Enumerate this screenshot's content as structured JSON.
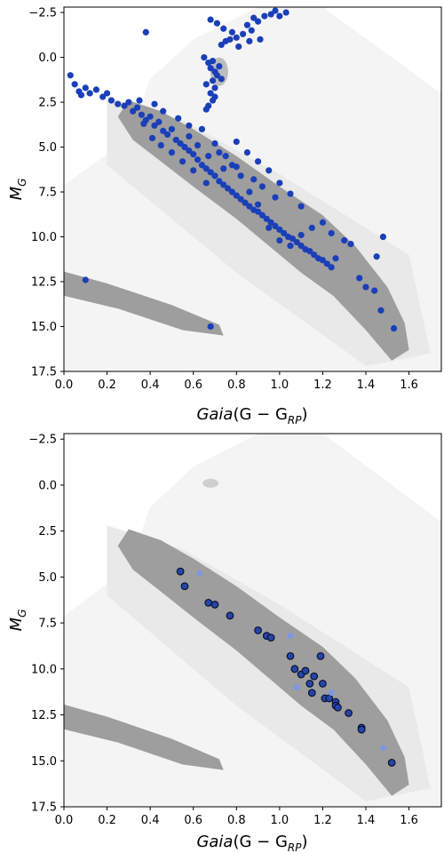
{
  "colors": {
    "background_cloud": "#f4f4f4",
    "background_cloud_dense": "#e9e9e9",
    "sequence_gray": "#9e9e9e",
    "points_top": "#1a3fb8",
    "points_bottom_dark": "#2546a8",
    "points_bottom_light": "#7d97e0",
    "edge_bottom": "#0a1030"
  },
  "chart_data": [
    {
      "type": "scatter",
      "xlabel_base": "Gaia",
      "xlabel_paren": "(G − G",
      "xlabel_sub": "RP",
      "xlabel_close": ")",
      "ylabel_base": "M",
      "ylabel_sub": "G",
      "xlim": [
        0.0,
        1.75
      ],
      "ylim": [
        17.5,
        -2.8
      ],
      "xticks": [
        "0.0",
        "0.2",
        "0.4",
        "0.6",
        "0.8",
        "1.0",
        "1.2",
        "1.4",
        "1.6"
      ],
      "yticks": [
        "−2.5",
        "0.0",
        "2.5",
        "5.0",
        "7.5",
        "10.0",
        "12.5",
        "15.0",
        "17.5"
      ],
      "series": [
        {
          "points": [
            [
              0.38,
              -1.4
            ],
            [
              0.68,
              -2.1
            ],
            [
              0.71,
              -1.9
            ],
            [
              0.74,
              -1.6
            ],
            [
              0.78,
              -1.4
            ],
            [
              0.8,
              -1.1
            ],
            [
              0.83,
              -1.3
            ],
            [
              0.85,
              -1.8
            ],
            [
              0.87,
              -1.5
            ],
            [
              0.88,
              -2.2
            ],
            [
              0.9,
              -2.0
            ],
            [
              0.93,
              -2.3
            ],
            [
              0.96,
              -2.4
            ],
            [
              0.98,
              -2.6
            ],
            [
              1.0,
              -2.3
            ],
            [
              1.03,
              -2.5
            ],
            [
              0.91,
              -1.0
            ],
            [
              0.86,
              -0.9
            ],
            [
              0.81,
              -0.6
            ],
            [
              0.77,
              -1.0
            ],
            [
              0.73,
              -0.7
            ],
            [
              0.75,
              -0.9
            ],
            [
              0.65,
              0.0
            ],
            [
              0.67,
              0.3
            ],
            [
              0.68,
              0.6
            ],
            [
              0.69,
              0.2
            ],
            [
              0.7,
              0.8
            ],
            [
              0.71,
              1.0
            ],
            [
              0.69,
              1.3
            ],
            [
              0.7,
              1.7
            ],
            [
              0.68,
              2.0
            ],
            [
              0.69,
              2.4
            ],
            [
              0.67,
              2.7
            ],
            [
              0.66,
              2.9
            ],
            [
              0.7,
              2.2
            ],
            [
              0.72,
              0.5
            ],
            [
              0.66,
              1.5
            ],
            [
              0.73,
              1.2
            ],
            [
              0.03,
              1.0
            ],
            [
              0.05,
              1.5
            ],
            [
              0.07,
              1.9
            ],
            [
              0.08,
              2.1
            ],
            [
              0.1,
              1.7
            ],
            [
              0.12,
              2.0
            ],
            [
              0.15,
              1.8
            ],
            [
              0.18,
              2.2
            ],
            [
              0.2,
              2.0
            ],
            [
              0.22,
              2.4
            ],
            [
              0.25,
              2.6
            ],
            [
              0.28,
              2.7
            ],
            [
              0.3,
              2.5
            ],
            [
              0.32,
              3.0
            ],
            [
              0.34,
              2.8
            ],
            [
              0.36,
              3.2
            ],
            [
              0.38,
              3.5
            ],
            [
              0.4,
              3.3
            ],
            [
              0.42,
              3.8
            ],
            [
              0.44,
              3.6
            ],
            [
              0.46,
              4.1
            ],
            [
              0.48,
              4.3
            ],
            [
              0.5,
              4.0
            ],
            [
              0.52,
              4.6
            ],
            [
              0.54,
              4.8
            ],
            [
              0.56,
              5.0
            ],
            [
              0.58,
              5.2
            ],
            [
              0.6,
              5.4
            ],
            [
              0.62,
              5.7
            ],
            [
              0.64,
              6.0
            ],
            [
              0.66,
              6.2
            ],
            [
              0.68,
              6.4
            ],
            [
              0.7,
              6.6
            ],
            [
              0.72,
              6.9
            ],
            [
              0.74,
              7.1
            ],
            [
              0.76,
              7.3
            ],
            [
              0.78,
              7.5
            ],
            [
              0.8,
              7.7
            ],
            [
              0.82,
              7.9
            ],
            [
              0.84,
              8.1
            ],
            [
              0.86,
              8.3
            ],
            [
              0.88,
              8.5
            ],
            [
              0.9,
              8.6
            ],
            [
              0.92,
              8.8
            ],
            [
              0.94,
              9.0
            ],
            [
              0.96,
              9.2
            ],
            [
              0.98,
              9.4
            ],
            [
              1.0,
              9.6
            ],
            [
              1.02,
              9.8
            ],
            [
              1.04,
              10.0
            ],
            [
              1.06,
              10.1
            ],
            [
              1.08,
              10.3
            ],
            [
              1.1,
              10.5
            ],
            [
              1.12,
              10.7
            ],
            [
              1.14,
              10.8
            ],
            [
              1.16,
              11.0
            ],
            [
              1.18,
              11.2
            ],
            [
              1.2,
              11.3
            ],
            [
              1.22,
              11.5
            ],
            [
              1.24,
              11.7
            ],
            [
              1.26,
              11.2
            ],
            [
              1.3,
              10.2
            ],
            [
              1.33,
              10.4
            ],
            [
              1.37,
              12.3
            ],
            [
              1.4,
              12.8
            ],
            [
              1.44,
              13.0
            ],
            [
              1.47,
              14.1
            ],
            [
              1.53,
              15.1
            ],
            [
              1.45,
              11.1
            ],
            [
              1.48,
              10.0
            ],
            [
              1.24,
              9.8
            ],
            [
              1.2,
              9.2
            ],
            [
              1.15,
              9.5
            ],
            [
              1.1,
              9.9
            ],
            [
              1.05,
              10.5
            ],
            [
              1.0,
              10.2
            ],
            [
              0.95,
              9.5
            ],
            [
              0.9,
              8.2
            ],
            [
              0.86,
              7.5
            ],
            [
              0.82,
              6.6
            ],
            [
              0.78,
              6.0
            ],
            [
              0.75,
              5.5
            ],
            [
              0.72,
              5.3
            ],
            [
              0.7,
              4.8
            ],
            [
              0.8,
              4.7
            ],
            [
              0.85,
              5.3
            ],
            [
              0.9,
              5.8
            ],
            [
              0.95,
              6.3
            ],
            [
              1.0,
              7.0
            ],
            [
              1.05,
              7.6
            ],
            [
              1.1,
              8.3
            ],
            [
              0.98,
              7.8
            ],
            [
              0.92,
              7.2
            ],
            [
              0.88,
              6.8
            ],
            [
              0.8,
              6.1
            ],
            [
              0.64,
              4.0
            ],
            [
              0.58,
              3.8
            ],
            [
              0.53,
              3.4
            ],
            [
              0.46,
              3.0
            ],
            [
              0.42,
              2.6
            ],
            [
              0.35,
              2.4
            ],
            [
              0.37,
              3.7
            ],
            [
              0.41,
              4.5
            ],
            [
              0.45,
              4.9
            ],
            [
              0.5,
              5.3
            ],
            [
              0.55,
              5.8
            ],
            [
              0.6,
              6.3
            ],
            [
              0.66,
              7.0
            ],
            [
              0.58,
              4.4
            ],
            [
              0.62,
              4.9
            ],
            [
              0.67,
              5.5
            ],
            [
              0.74,
              6.2
            ],
            [
              0.1,
              12.4
            ],
            [
              0.68,
              15.0
            ]
          ]
        }
      ]
    },
    {
      "type": "scatter",
      "xlabel_base": "Gaia",
      "xlabel_paren": "(G − G",
      "xlabel_sub": "RP",
      "xlabel_close": ")",
      "ylabel_base": "M",
      "ylabel_sub": "G",
      "xlim": [
        0.0,
        1.75
      ],
      "ylim": [
        17.5,
        -2.8
      ],
      "xticks": [
        "0.0",
        "0.2",
        "0.4",
        "0.6",
        "0.8",
        "1.0",
        "1.2",
        "1.4",
        "1.6"
      ],
      "yticks": [
        "−2.5",
        "0.0",
        "2.5",
        "5.0",
        "7.5",
        "10.0",
        "12.5",
        "15.0",
        "17.5"
      ],
      "series": [
        {
          "points": [
            [
              0.54,
              4.7
            ],
            [
              0.56,
              5.5
            ],
            [
              0.67,
              6.4
            ],
            [
              0.7,
              6.5
            ],
            [
              0.77,
              7.1
            ],
            [
              0.9,
              7.9
            ],
            [
              0.94,
              8.2
            ],
            [
              0.96,
              8.3
            ],
            [
              1.05,
              9.3
            ],
            [
              1.07,
              10.0
            ],
            [
              1.1,
              10.3
            ],
            [
              1.12,
              10.1
            ],
            [
              1.14,
              10.8
            ],
            [
              1.16,
              10.4
            ],
            [
              1.19,
              9.3
            ],
            [
              1.2,
              10.8
            ],
            [
              1.21,
              11.6
            ],
            [
              1.23,
              11.6
            ],
            [
              1.15,
              11.3
            ],
            [
              1.26,
              11.8
            ],
            [
              1.26,
              12.0
            ],
            [
              1.27,
              12.1
            ],
            [
              1.32,
              12.4
            ],
            [
              1.38,
              13.2
            ],
            [
              1.38,
              13.3
            ],
            [
              1.52,
              15.1
            ]
          ]
        },
        {
          "points": [
            [
              0.63,
              4.8
            ],
            [
              1.05,
              8.2
            ],
            [
              1.08,
              11.0
            ],
            [
              1.24,
              11.3
            ],
            [
              1.48,
              14.3
            ]
          ]
        }
      ]
    }
  ]
}
